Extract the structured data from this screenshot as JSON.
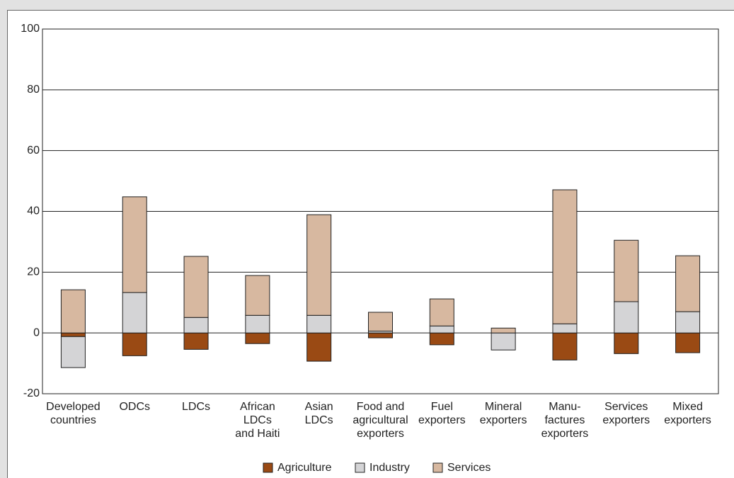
{
  "chart_data": {
    "type": "bar",
    "stacked": true,
    "categories": [
      "Developed\ncountries",
      "ODCs",
      "LDCs",
      "African\nLDCs\nand Haiti",
      "Asian\nLDCs",
      "Food and\nagricultural\nexporters",
      "Fuel\nexporters",
      "Mineral\nexporters",
      "Manu-\nfactures\nexporters",
      "Services\nexporters",
      "Mixed\nexporters"
    ],
    "series": [
      {
        "name": "Agriculture",
        "color": "#9a4a14",
        "values": [
          -1.2,
          -7.5,
          -5.4,
          -3.5,
          -9.3,
          -1.6,
          -3.9,
          0,
          -8.9,
          -6.8,
          -6.5
        ]
      },
      {
        "name": "Industry",
        "color": "#d4d4d6",
        "values": [
          -10.2,
          13.3,
          5.1,
          5.8,
          5.8,
          0.6,
          2.3,
          -5.6,
          3.0,
          10.3,
          7.0
        ]
      },
      {
        "name": "Services",
        "color": "#d7b8a0",
        "values": [
          14.2,
          31.5,
          20.1,
          13.1,
          33.1,
          6.2,
          8.9,
          1.6,
          44.1,
          20.2,
          18.4
        ]
      }
    ],
    "ylim": [
      -20,
      100
    ],
    "yticks": [
      -20,
      0,
      20,
      40,
      60,
      80,
      100
    ],
    "grid": true,
    "legend": "bottom"
  }
}
